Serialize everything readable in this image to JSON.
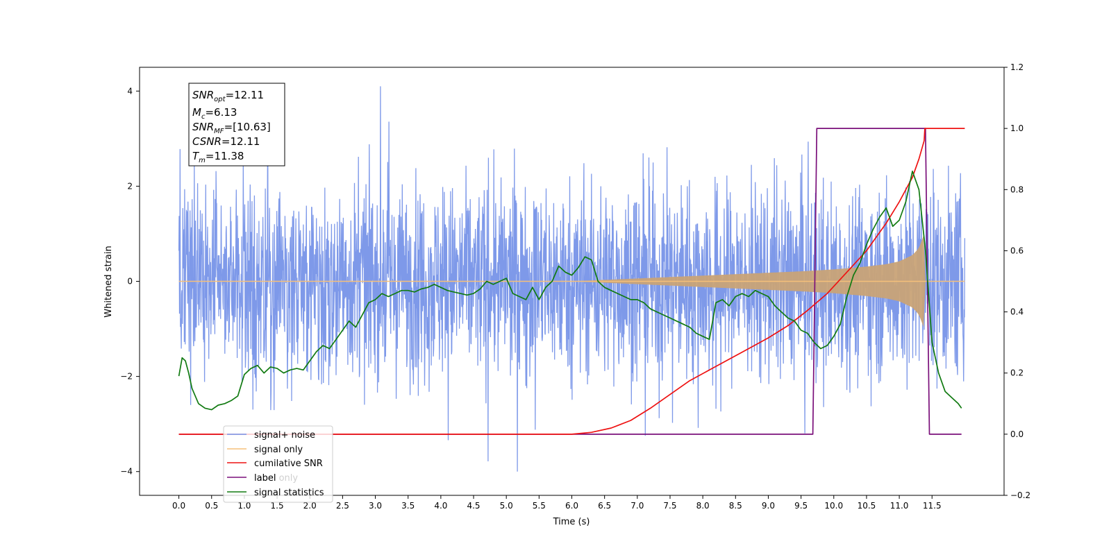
{
  "chart_data": {
    "type": "line",
    "xlabel": "Time (s)",
    "ylabel": "Whitened strain",
    "xlim": [
      -0.6,
      12.6
    ],
    "ylim": [
      -4.5,
      4.5
    ],
    "y2lim": [
      -0.2,
      1.2
    ],
    "grid": false,
    "x_ticks": [
      {
        "value": 0.0,
        "label": "0.0"
      },
      {
        "value": 0.5,
        "label": "0.5"
      },
      {
        "value": 1.0,
        "label": "1.0"
      },
      {
        "value": 1.5,
        "label": "1.5"
      },
      {
        "value": 2.0,
        "label": "2.0"
      },
      {
        "value": 2.5,
        "label": "2.5"
      },
      {
        "value": 3.0,
        "label": "3.0"
      },
      {
        "value": 3.5,
        "label": "3.5"
      },
      {
        "value": 4.0,
        "label": "4.0"
      },
      {
        "value": 4.5,
        "label": "4.5"
      },
      {
        "value": 5.0,
        "label": "5.0"
      },
      {
        "value": 5.5,
        "label": "5.5"
      },
      {
        "value": 6.0,
        "label": "6.0"
      },
      {
        "value": 6.5,
        "label": "6.5"
      },
      {
        "value": 7.0,
        "label": "7.0"
      },
      {
        "value": 7.5,
        "label": "7.5"
      },
      {
        "value": 8.0,
        "label": "8.0"
      },
      {
        "value": 8.5,
        "label": "8.5"
      },
      {
        "value": 9.0,
        "label": "9.0"
      },
      {
        "value": 9.5,
        "label": "9.5"
      },
      {
        "value": 10.0,
        "label": "10.0"
      },
      {
        "value": 10.5,
        "label": "10.5"
      },
      {
        "value": 11.0,
        "label": "11.0"
      },
      {
        "value": 11.5,
        "label": "11.5"
      }
    ],
    "y_ticks": [
      {
        "value": 4,
        "label": "4"
      },
      {
        "value": 2,
        "label": "2"
      },
      {
        "value": 0,
        "label": "0"
      },
      {
        "value": -2,
        "label": "−2"
      },
      {
        "value": -4,
        "label": "−4"
      }
    ],
    "y2_ticks": [
      {
        "value": 1.2,
        "label": "1.2"
      },
      {
        "value": 1.0,
        "label": "1.0"
      },
      {
        "value": 0.8,
        "label": "0.8"
      },
      {
        "value": 0.6,
        "label": "0.6"
      },
      {
        "value": 0.4,
        "label": "0.4"
      },
      {
        "value": 0.2,
        "label": "0.2"
      },
      {
        "value": 0.0,
        "label": "0.0"
      },
      {
        "value": -0.2,
        "label": "−0.2"
      }
    ],
    "series": [
      {
        "name": "signal+ noise",
        "color": "#7794e8",
        "axis": "left",
        "kind": "noise_band",
        "x_range": [
          0.0,
          12.0
        ],
        "typical_range": [
          -1.6,
          1.6
        ],
        "extreme_range": [
          -4.0,
          4.1
        ]
      },
      {
        "name": "signal only",
        "color": "#f5c07a",
        "axis": "left",
        "kind": "chirp_envelope",
        "x": [
          0.0,
          6.0,
          6.5,
          7.0,
          7.5,
          8.0,
          8.5,
          9.0,
          9.5,
          10.0,
          10.5,
          10.8,
          11.0,
          11.2,
          11.3,
          11.38,
          11.4,
          12.0
        ],
        "amplitude": [
          0.0,
          0.0,
          0.03,
          0.06,
          0.09,
          0.12,
          0.15,
          0.18,
          0.21,
          0.25,
          0.31,
          0.36,
          0.42,
          0.55,
          0.7,
          1.0,
          0.0,
          0.0
        ]
      },
      {
        "name": "cumilative SNR",
        "color": "#ee1111",
        "axis": "right",
        "x": [
          0.0,
          6.0,
          6.3,
          6.6,
          6.9,
          7.2,
          7.5,
          7.8,
          8.1,
          8.4,
          8.7,
          9.0,
          9.3,
          9.6,
          9.9,
          10.2,
          10.5,
          10.8,
          11.0,
          11.2,
          11.3,
          11.38,
          11.39,
          12.0
        ],
        "values": [
          0.0,
          0.0,
          0.006,
          0.02,
          0.045,
          0.085,
          0.13,
          0.175,
          0.21,
          0.245,
          0.28,
          0.315,
          0.355,
          0.405,
          0.46,
          0.53,
          0.6,
          0.69,
          0.76,
          0.84,
          0.9,
          0.96,
          1.0,
          1.0
        ]
      },
      {
        "name": "label",
        "color": "#7a0f7a",
        "axis": "right",
        "x": [
          0.0,
          9.68,
          9.74,
          11.4,
          11.46,
          11.95
        ],
        "values": [
          0.0,
          0.0,
          1.0,
          1.0,
          0.0,
          0.0
        ]
      },
      {
        "name": "signal statistics",
        "color": "#117a11",
        "axis": "right",
        "x": [
          0.0,
          0.05,
          0.1,
          0.15,
          0.2,
          0.3,
          0.4,
          0.5,
          0.6,
          0.7,
          0.8,
          0.9,
          1.0,
          1.1,
          1.2,
          1.3,
          1.4,
          1.5,
          1.6,
          1.7,
          1.8,
          1.9,
          2.0,
          2.1,
          2.2,
          2.3,
          2.4,
          2.5,
          2.6,
          2.7,
          2.8,
          2.9,
          3.0,
          3.1,
          3.2,
          3.3,
          3.4,
          3.5,
          3.6,
          3.7,
          3.8,
          3.9,
          4.0,
          4.1,
          4.2,
          4.3,
          4.4,
          4.5,
          4.6,
          4.7,
          4.8,
          4.9,
          5.0,
          5.1,
          5.2,
          5.3,
          5.4,
          5.5,
          5.6,
          5.7,
          5.8,
          5.9,
          6.0,
          6.1,
          6.2,
          6.3,
          6.4,
          6.5,
          6.6,
          6.7,
          6.8,
          6.9,
          7.0,
          7.1,
          7.2,
          7.3,
          7.4,
          7.5,
          7.6,
          7.7,
          7.8,
          7.9,
          8.0,
          8.1,
          8.2,
          8.3,
          8.4,
          8.5,
          8.6,
          8.7,
          8.8,
          8.9,
          9.0,
          9.1,
          9.2,
          9.3,
          9.4,
          9.5,
          9.6,
          9.7,
          9.8,
          9.9,
          10.0,
          10.1,
          10.2,
          10.3,
          10.4,
          10.5,
          10.6,
          10.7,
          10.8,
          10.9,
          11.0,
          11.1,
          11.2,
          11.3,
          11.4,
          11.5,
          11.6,
          11.7,
          11.8,
          11.9,
          11.95
        ],
        "values": [
          0.19,
          0.25,
          0.24,
          0.2,
          0.15,
          0.1,
          0.085,
          0.08,
          0.095,
          0.1,
          0.11,
          0.125,
          0.195,
          0.215,
          0.225,
          0.2,
          0.22,
          0.215,
          0.2,
          0.21,
          0.215,
          0.21,
          0.24,
          0.27,
          0.29,
          0.28,
          0.31,
          0.34,
          0.37,
          0.35,
          0.39,
          0.43,
          0.44,
          0.46,
          0.45,
          0.46,
          0.47,
          0.47,
          0.465,
          0.475,
          0.48,
          0.49,
          0.48,
          0.47,
          0.465,
          0.46,
          0.455,
          0.46,
          0.475,
          0.5,
          0.49,
          0.5,
          0.51,
          0.46,
          0.45,
          0.44,
          0.48,
          0.44,
          0.48,
          0.5,
          0.55,
          0.53,
          0.52,
          0.545,
          0.58,
          0.57,
          0.5,
          0.48,
          0.47,
          0.46,
          0.45,
          0.44,
          0.44,
          0.43,
          0.41,
          0.4,
          0.39,
          0.38,
          0.37,
          0.36,
          0.35,
          0.33,
          0.32,
          0.31,
          0.43,
          0.44,
          0.42,
          0.45,
          0.46,
          0.45,
          0.47,
          0.46,
          0.45,
          0.42,
          0.4,
          0.38,
          0.37,
          0.34,
          0.33,
          0.3,
          0.28,
          0.29,
          0.32,
          0.36,
          0.45,
          0.52,
          0.56,
          0.62,
          0.67,
          0.71,
          0.74,
          0.68,
          0.7,
          0.76,
          0.86,
          0.8,
          0.6,
          0.3,
          0.2,
          0.14,
          0.12,
          0.1,
          0.085
        ],
        "annotation_lines": [
          "SNRopt=12.11",
          "Mc=6.13",
          "SNRMF=[10.63]",
          "CSNR=12.11",
          "Tm=11.38"
        ]
      }
    ],
    "legend": {
      "position": "lower-left",
      "entries": [
        "signal+ noise",
        "signal only",
        "cumilative SNR",
        "label",
        "signal statistics"
      ],
      "partially_obscured_text": "label only"
    },
    "annotation_box": {
      "position": "top-left",
      "lines": [
        {
          "var": "SNR",
          "sub": "opt",
          "value": "=12.11"
        },
        {
          "var": "M",
          "sub": "c",
          "value": "=6.13"
        },
        {
          "var": "SNR",
          "sub": "MF",
          "value": "=[10.63]"
        },
        {
          "var": "CSNR",
          "sub": "",
          "value": "=12.11"
        },
        {
          "var": "T",
          "sub": "m",
          "value": "=11.38"
        }
      ]
    }
  }
}
